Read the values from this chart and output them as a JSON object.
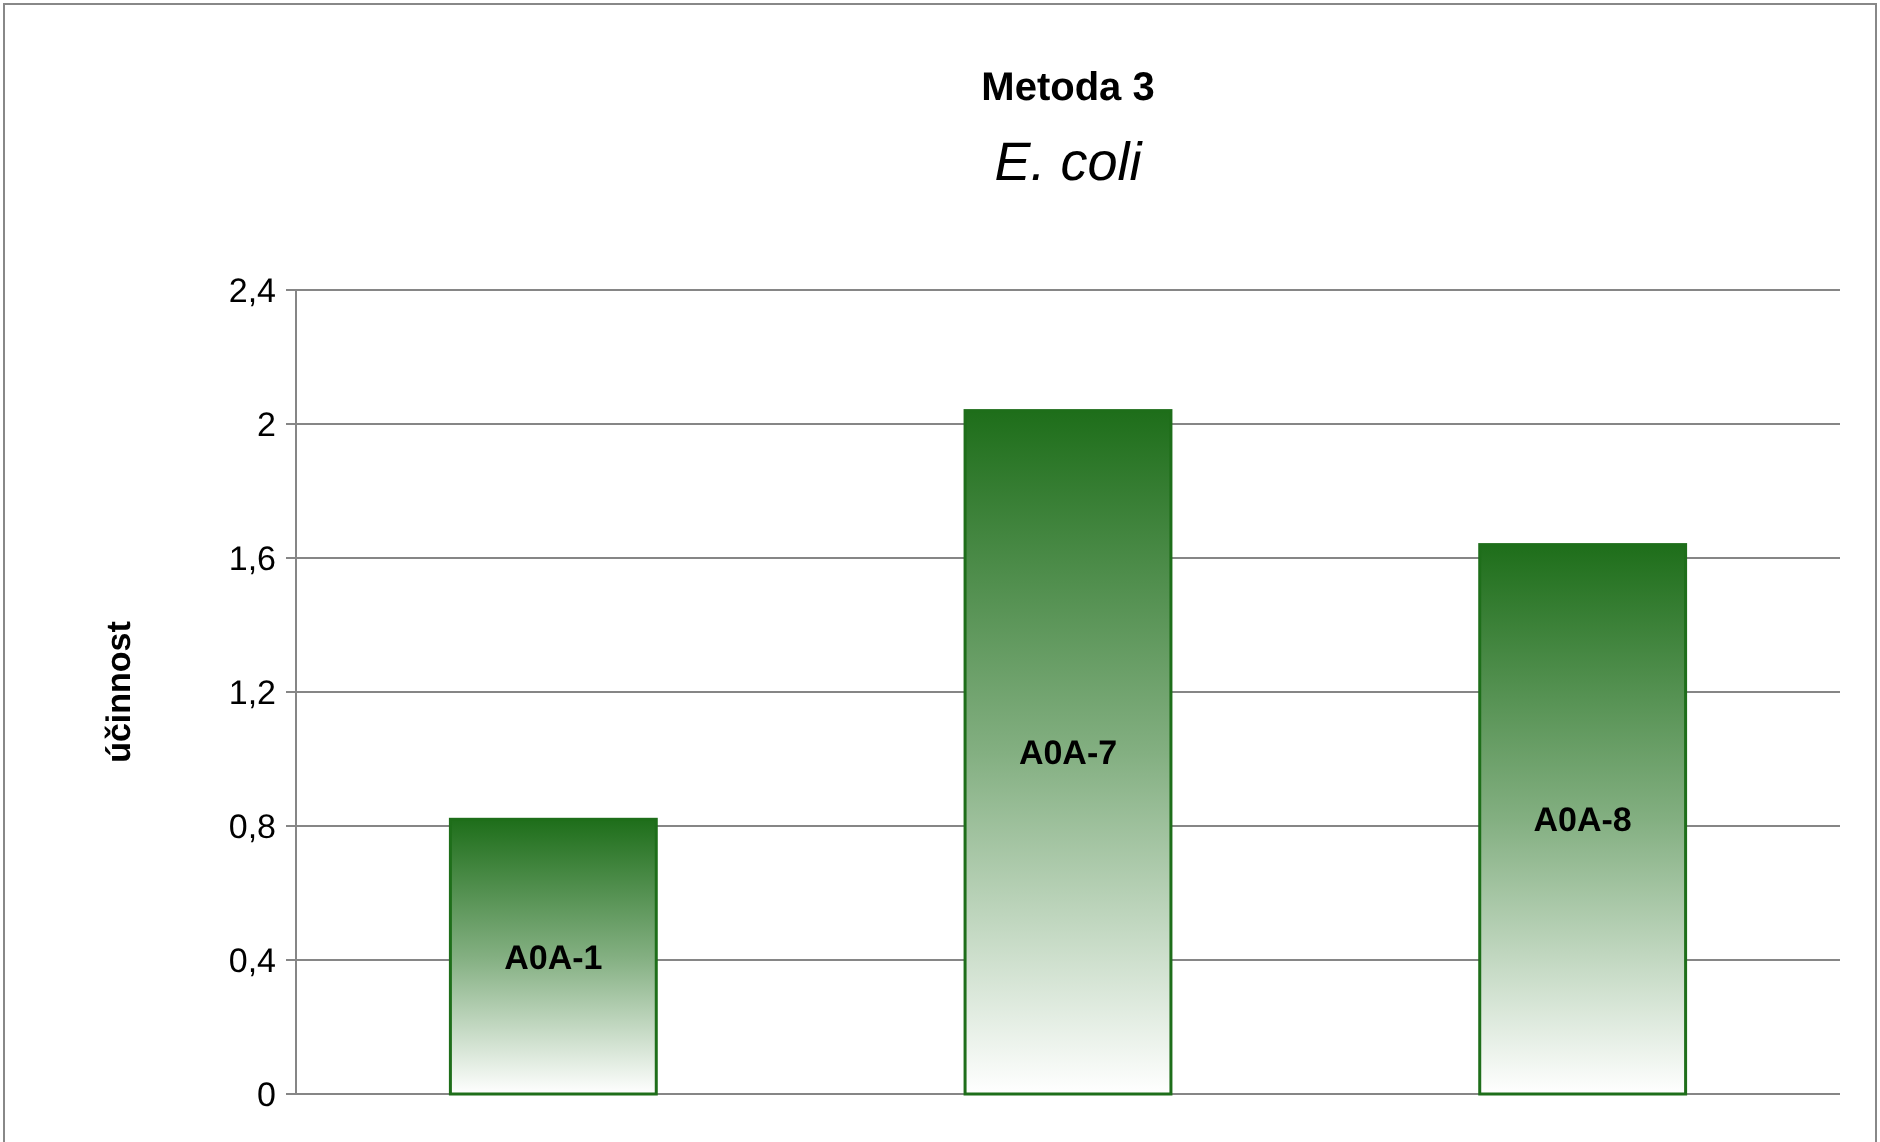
{
  "chart_data": {
    "type": "bar",
    "title": "Metoda 3",
    "subtitle": "E. coli",
    "ylabel": "účinnost",
    "categories": [
      "A0A-1",
      "A0A-7",
      "A0A-8"
    ],
    "values": [
      0.82,
      2.04,
      1.64
    ],
    "color": "#1e6e1a",
    "ylim": [
      0,
      2.4
    ],
    "yticks": [
      0,
      {
        "value": 0.4,
        "label": "0,4"
      },
      {
        "value": 0.8,
        "label": "0,8"
      },
      {
        "value": 1.2,
        "label": "1,2"
      },
      {
        "value": 1.6,
        "label": "1,6"
      },
      2,
      {
        "value": 2.4,
        "label": "2,4"
      }
    ],
    "grid": "y",
    "tick_labels": "y"
  }
}
